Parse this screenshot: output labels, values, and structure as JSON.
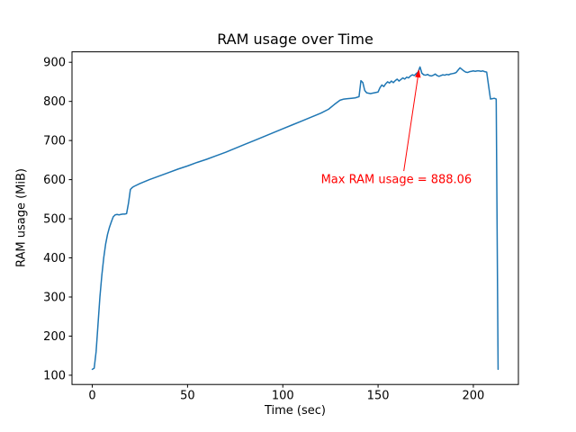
{
  "figure": {
    "background": "#ffffff"
  },
  "chart_data": {
    "type": "line",
    "title": "RAM usage over Time",
    "xlabel": "Time (sec)",
    "ylabel": "RAM usage (MiB)",
    "line_color": "#1f77b4",
    "xlim": [
      -10.65,
      223.65
    ],
    "ylim": [
      76.35,
      926.71
    ],
    "xticks": [
      0,
      50,
      100,
      150,
      200
    ],
    "yticks": [
      100,
      200,
      300,
      400,
      500,
      600,
      700,
      800,
      900
    ],
    "grid": false,
    "legend": "none",
    "series": [
      {
        "name": "RAM usage",
        "points": [
          [
            0,
            115
          ],
          [
            1,
            118
          ],
          [
            2,
            160
          ],
          [
            3,
            230
          ],
          [
            4,
            300
          ],
          [
            5,
            355
          ],
          [
            6,
            400
          ],
          [
            7,
            435
          ],
          [
            8,
            460
          ],
          [
            9,
            478
          ],
          [
            10,
            492
          ],
          [
            11,
            505
          ],
          [
            12,
            510
          ],
          [
            13,
            511
          ],
          [
            14,
            510
          ],
          [
            15,
            511
          ],
          [
            16,
            512
          ],
          [
            17,
            512
          ],
          [
            18,
            513
          ],
          [
            19,
            540
          ],
          [
            20,
            575
          ],
          [
            21,
            580
          ],
          [
            22,
            583
          ],
          [
            25,
            590
          ],
          [
            30,
            600
          ],
          [
            35,
            609
          ],
          [
            40,
            618
          ],
          [
            45,
            627
          ],
          [
            50,
            635
          ],
          [
            55,
            644
          ],
          [
            60,
            652
          ],
          [
            65,
            661
          ],
          [
            70,
            670
          ],
          [
            75,
            680
          ],
          [
            80,
            690
          ],
          [
            85,
            700
          ],
          [
            90,
            710
          ],
          [
            95,
            720
          ],
          [
            100,
            730
          ],
          [
            105,
            740
          ],
          [
            110,
            750
          ],
          [
            115,
            760
          ],
          [
            120,
            770
          ],
          [
            124,
            780
          ],
          [
            127,
            792
          ],
          [
            130,
            803
          ],
          [
            132,
            806
          ],
          [
            134,
            807
          ],
          [
            136,
            808
          ],
          [
            138,
            809
          ],
          [
            140,
            812
          ],
          [
            141,
            853
          ],
          [
            142,
            848
          ],
          [
            143,
            828
          ],
          [
            144,
            822
          ],
          [
            146,
            820
          ],
          [
            148,
            822
          ],
          [
            150,
            824
          ],
          [
            151,
            835
          ],
          [
            152,
            842
          ],
          [
            153,
            838
          ],
          [
            154,
            845
          ],
          [
            155,
            850
          ],
          [
            156,
            847
          ],
          [
            157,
            852
          ],
          [
            158,
            848
          ],
          [
            159,
            853
          ],
          [
            160,
            857
          ],
          [
            161,
            852
          ],
          [
            162,
            856
          ],
          [
            163,
            860
          ],
          [
            164,
            857
          ],
          [
            165,
            862
          ],
          [
            166,
            860
          ],
          [
            167,
            865
          ],
          [
            168,
            868
          ],
          [
            169,
            866
          ],
          [
            170,
            871
          ],
          [
            171,
            875
          ],
          [
            172,
            888.06
          ],
          [
            173,
            872
          ],
          [
            174,
            868
          ],
          [
            175,
            867
          ],
          [
            176,
            869
          ],
          [
            177,
            866
          ],
          [
            178,
            865
          ],
          [
            179,
            867
          ],
          [
            180,
            870
          ],
          [
            181,
            866
          ],
          [
            182,
            864
          ],
          [
            183,
            866
          ],
          [
            184,
            868
          ],
          [
            185,
            867
          ],
          [
            186,
            869
          ],
          [
            187,
            868
          ],
          [
            188,
            870
          ],
          [
            189,
            871
          ],
          [
            190,
            872
          ],
          [
            191,
            874
          ],
          [
            192,
            880
          ],
          [
            193,
            886
          ],
          [
            194,
            882
          ],
          [
            195,
            878
          ],
          [
            196,
            875
          ],
          [
            197,
            874
          ],
          [
            198,
            876
          ],
          [
            199,
            877
          ],
          [
            200,
            878
          ],
          [
            201,
            877
          ],
          [
            202,
            878
          ],
          [
            203,
            878
          ],
          [
            204,
            877
          ],
          [
            205,
            878
          ],
          [
            206,
            876
          ],
          [
            207,
            875
          ],
          [
            208,
            840
          ],
          [
            209,
            806
          ],
          [
            210,
            807
          ],
          [
            211,
            808
          ],
          [
            212,
            806
          ],
          [
            213,
            115
          ]
        ]
      }
    ],
    "annotation": {
      "text": "Max RAM usage = 888.06",
      "color": "#ff0000",
      "max_value": 888.06,
      "text_xy": [
        120,
        600
      ],
      "arrow_start": [
        163.5,
        622
      ],
      "arrow_end": [
        171.5,
        882
      ]
    }
  }
}
